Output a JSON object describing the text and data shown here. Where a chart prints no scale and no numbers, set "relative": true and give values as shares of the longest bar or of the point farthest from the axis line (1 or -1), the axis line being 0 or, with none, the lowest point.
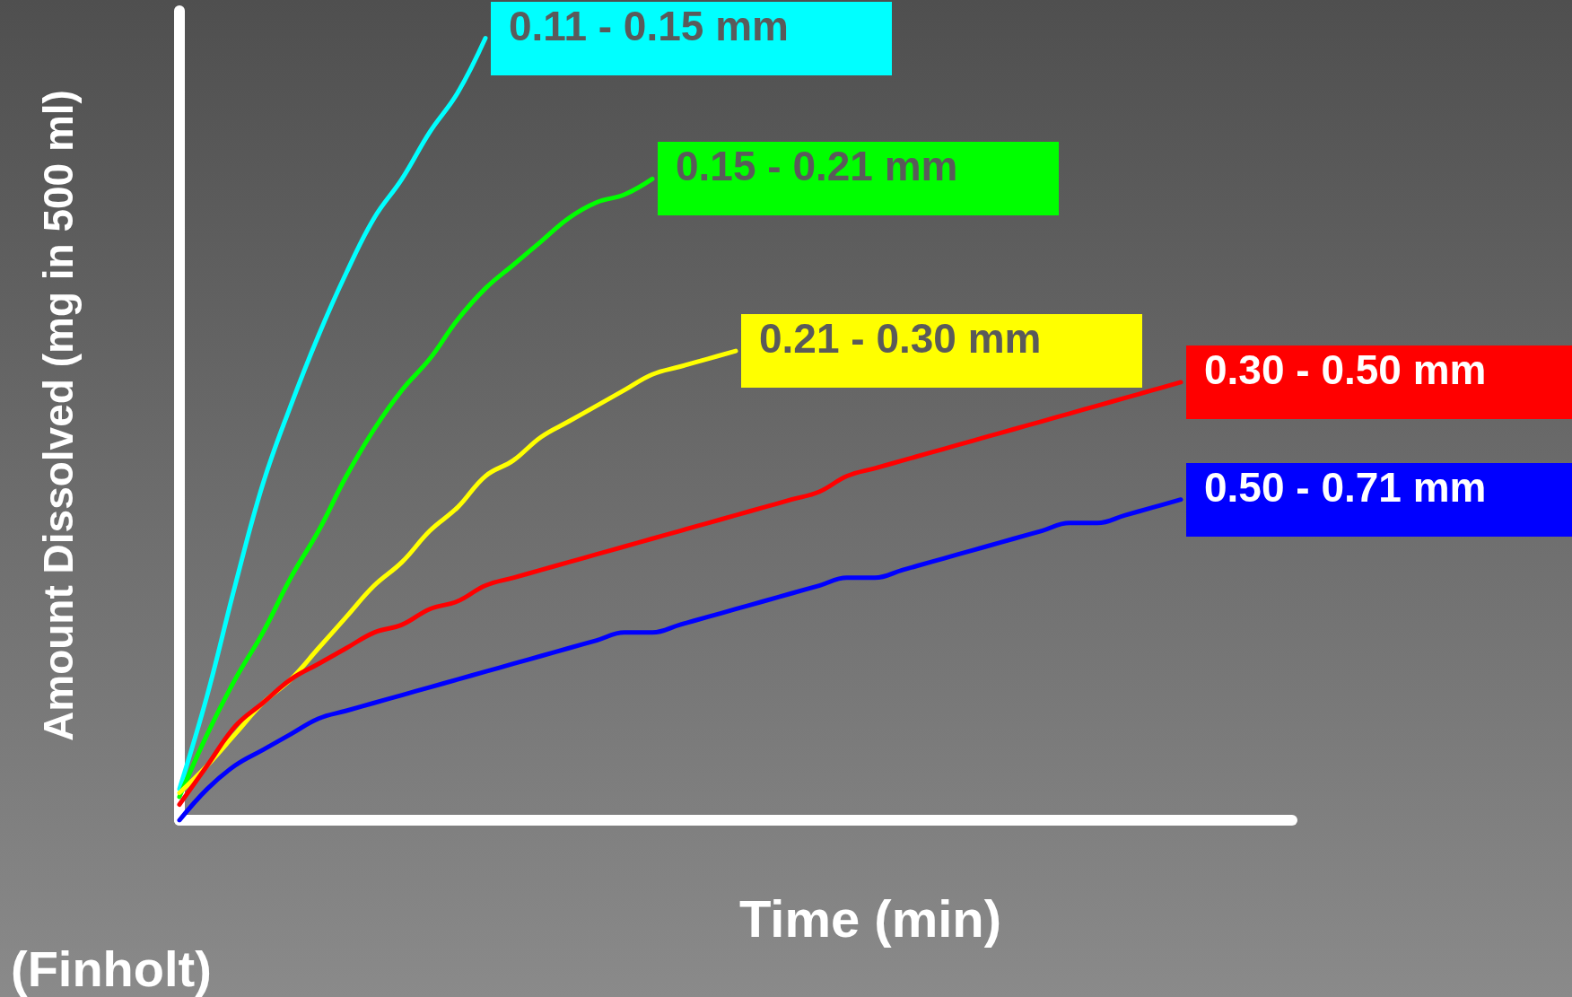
{
  "chart_data": {
    "type": "line",
    "relative": true,
    "xlabel": "Time (min)",
    "ylabel": "Amount Dissolved (mg in 500 ml)",
    "annotations": [
      "(Finholt)"
    ],
    "grid": false,
    "legend": false,
    "marker": "none",
    "line_style": "solid",
    "categories": [
      null,
      null,
      null,
      null,
      null,
      null,
      null,
      null,
      null,
      null,
      null,
      null,
      null,
      null,
      null,
      null,
      null,
      null,
      null,
      null,
      null,
      null,
      null,
      null,
      null,
      null,
      null,
      null,
      null,
      null,
      null,
      null,
      null,
      null,
      null,
      null,
      null,
      null,
      null,
      null,
      null
    ],
    "series": [
      {
        "name": "0.11 - 0.15 mm",
        "color": "#00ffff",
        "values": [
          0.04,
          0.16,
          0.3,
          0.43,
          0.53,
          0.62,
          0.7,
          0.77,
          0.82,
          0.88,
          0.93,
          1,
          null,
          null,
          null,
          null,
          null,
          null,
          null,
          null,
          null,
          null,
          null,
          null,
          null,
          null,
          null,
          null,
          null,
          null,
          null,
          null,
          null,
          null,
          null,
          null,
          null,
          null,
          null,
          null,
          null
        ]
      },
      {
        "name": "0.15 - 0.21 mm",
        "color": "#00ff00",
        "values": [
          0.03,
          0.11,
          0.18,
          0.24,
          0.31,
          0.37,
          0.44,
          0.5,
          0.55,
          0.59,
          0.64,
          0.68,
          0.71,
          0.74,
          0.77,
          0.79,
          0.8,
          0.82,
          null,
          null,
          null,
          null,
          null,
          null,
          null,
          null,
          null,
          null,
          null,
          null,
          null,
          null,
          null,
          null,
          null,
          null,
          null,
          null,
          null,
          null,
          null
        ]
      },
      {
        "name": "0.21 - 0.30 mm",
        "color": "#ffff00",
        "values": [
          0.035,
          0.07,
          0.11,
          0.15,
          0.18,
          0.22,
          0.26,
          0.3,
          0.33,
          0.37,
          0.4,
          0.44,
          0.46,
          0.49,
          0.51,
          0.53,
          0.55,
          0.57,
          0.58,
          0.59,
          0.6,
          null,
          null,
          null,
          null,
          null,
          null,
          null,
          null,
          null,
          null,
          null,
          null,
          null,
          null,
          null,
          null,
          null,
          null,
          null,
          null
        ]
      },
      {
        "name": "0.30 - 0.50 mm",
        "color": "#ff0000",
        "values": [
          0.02,
          0.07,
          0.12,
          0.15,
          0.18,
          0.2,
          0.22,
          0.24,
          0.25,
          0.27,
          0.28,
          0.3,
          0.31,
          0.32,
          0.33,
          0.34,
          0.35,
          0.36,
          0.37,
          0.38,
          0.39,
          0.4,
          0.41,
          0.42,
          0.44,
          0.45,
          0.46,
          0.47,
          0.48,
          0.49,
          0.5,
          0.51,
          0.52,
          0.53,
          0.54,
          0.55,
          0.56,
          null,
          null,
          null,
          null
        ]
      },
      {
        "name": "0.50 - 0.71 mm",
        "color": "#0000ff",
        "values": [
          0,
          0.04,
          0.07,
          0.09,
          0.11,
          0.13,
          0.14,
          0.15,
          0.16,
          0.17,
          0.18,
          0.19,
          0.2,
          0.21,
          0.22,
          0.23,
          0.24,
          0.24,
          0.25,
          0.26,
          0.27,
          0.28,
          0.29,
          0.3,
          0.31,
          0.31,
          0.32,
          0.33,
          0.34,
          0.35,
          0.36,
          0.37,
          0.38,
          0.38,
          0.39,
          0.4,
          0.41,
          null,
          null,
          null,
          null
        ]
      }
    ]
  }
}
